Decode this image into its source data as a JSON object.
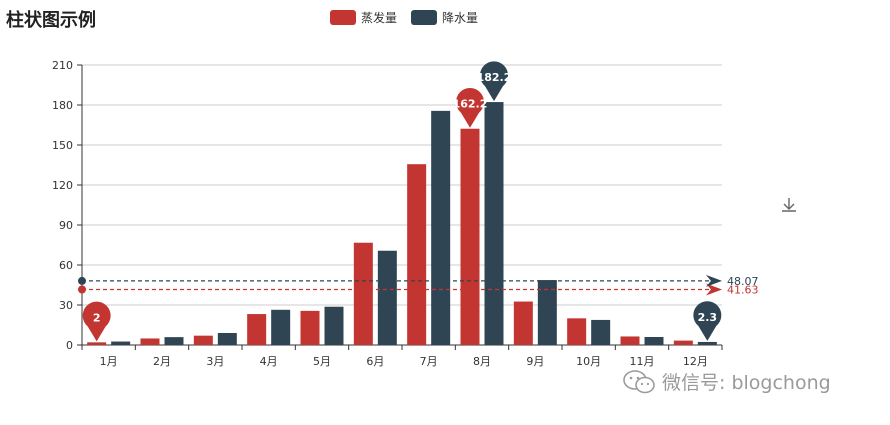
{
  "chart_data": {
    "type": "bar",
    "title": "柱状图示例",
    "categories": [
      "1月",
      "2月",
      "3月",
      "4月",
      "5月",
      "6月",
      "7月",
      "8月",
      "9月",
      "10月",
      "11月",
      "12月"
    ],
    "series": [
      {
        "name": "蒸发量",
        "color": "#c23531",
        "values": [
          2.0,
          4.9,
          7.0,
          23.2,
          25.6,
          76.7,
          135.6,
          162.2,
          32.6,
          20.0,
          6.4,
          3.3
        ],
        "max_label": "162.2",
        "min_label": "2",
        "average": 41.63,
        "average_label": "41.63"
      },
      {
        "name": "降水量",
        "color": "#2f4554",
        "values": [
          2.6,
          5.9,
          9.0,
          26.4,
          28.7,
          70.7,
          175.6,
          182.2,
          48.7,
          18.8,
          6.0,
          2.3
        ],
        "max_label": "182.2",
        "min_label": "2.3",
        "average": 48.07,
        "average_label": "48.07"
      }
    ],
    "ylim": [
      0,
      210
    ],
    "yticks": [
      0,
      30,
      60,
      90,
      120,
      150,
      180,
      210
    ],
    "grid": true,
    "legend": "top-center"
  },
  "toolbox": {
    "icon": "download-icon"
  },
  "watermark": {
    "icon": "wechat-icon",
    "text": "微信号: blogchong"
  }
}
